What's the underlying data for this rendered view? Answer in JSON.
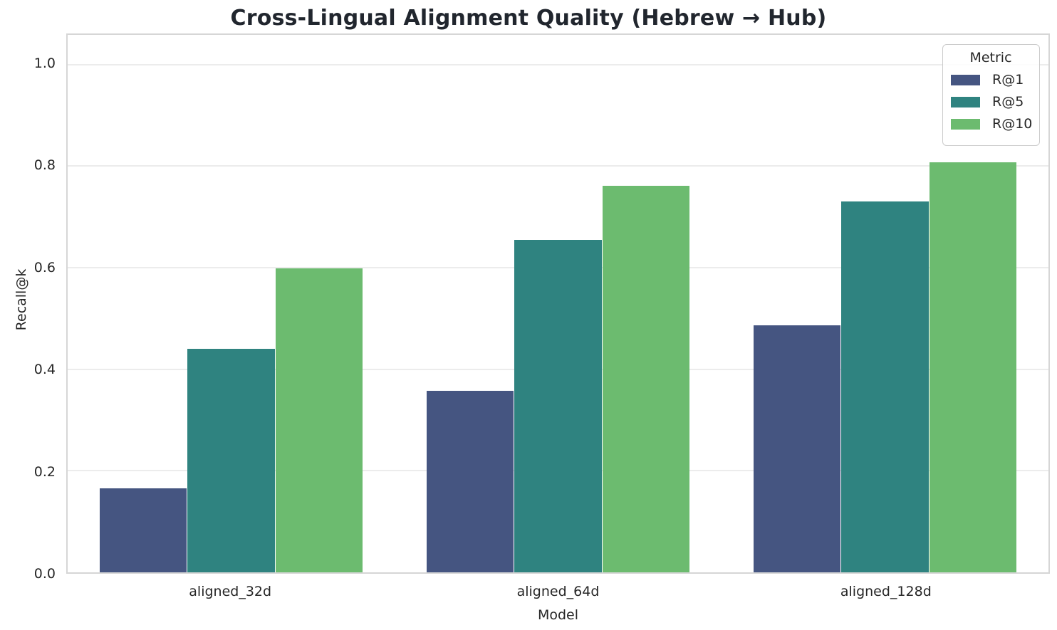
{
  "title": "Cross-Lingual Alignment Quality (Hebrew → Hub)",
  "chart_data": {
    "type": "bar",
    "title": "Cross-Lingual Alignment Quality (Hebrew → Hub)",
    "xlabel": "Model",
    "ylabel": "Recall@k",
    "categories": [
      "aligned_32d",
      "aligned_64d",
      "aligned_128d"
    ],
    "series": [
      {
        "name": "R@1",
        "color": "#455581",
        "values": [
          0.165,
          0.357,
          0.487
        ]
      },
      {
        "name": "R@5",
        "color": "#2F8380",
        "values": [
          0.44,
          0.655,
          0.73
        ]
      },
      {
        "name": "R@10",
        "color": "#6CBB6F",
        "values": [
          0.598,
          0.761,
          0.807
        ]
      }
    ],
    "yticks": [
      0.0,
      0.2,
      0.4,
      0.6,
      0.8,
      1.0
    ],
    "ytick_labels": [
      "0.0",
      "0.2",
      "0.4",
      "0.6",
      "0.8",
      "1.0"
    ],
    "ylim": [
      0,
      1.05
    ],
    "grid": true,
    "legend": {
      "title": "Metric",
      "position": "upper right"
    },
    "style": {
      "grid_color": "#ececec",
      "spine_color": "#d6d6d6",
      "text_color": "#262626",
      "background": "#ffffff",
      "bar_width_fraction": 0.8
    }
  }
}
